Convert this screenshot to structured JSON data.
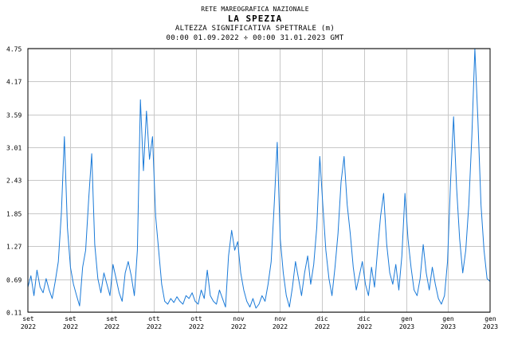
{
  "header": {
    "network": "RETE MAREOGRAFICA NAZIONALE",
    "station": "LA SPEZIA",
    "quantity": "ALTEZZA SIGNIFICATIVA SPETTRALE (m)",
    "period": "00:00 01.09.2022 ÷ 00:00 31.01.2023 GMT"
  },
  "chart_data": {
    "type": "line",
    "title": "LA SPEZIA",
    "subtitle": "ALTEZZA SIGNIFICATIVA SPETTRALE (m)",
    "xlabel": "",
    "ylabel": "",
    "grid": true,
    "line_color": "#1a7ad8",
    "x_range": [
      "2022-09-01",
      "2023-01-31"
    ],
    "ylim": [
      0.11,
      4.75
    ],
    "y_ticks": [
      "0.11",
      "0.69",
      "1.27",
      "1.85",
      "2.43",
      "3.01",
      "3.59",
      "4.17",
      "4.75"
    ],
    "x_ticks": [
      {
        "month": "set",
        "year": "2022"
      },
      {
        "month": "set",
        "year": "2022"
      },
      {
        "month": "set",
        "year": "2022"
      },
      {
        "month": "ott",
        "year": "2022"
      },
      {
        "month": "ott",
        "year": "2022"
      },
      {
        "month": "nov",
        "year": "2022"
      },
      {
        "month": "nov",
        "year": "2022"
      },
      {
        "month": "dic",
        "year": "2022"
      },
      {
        "month": "dic",
        "year": "2022"
      },
      {
        "month": "gen",
        "year": "2023"
      },
      {
        "month": "gen",
        "year": "2023"
      },
      {
        "month": "gen",
        "year": "2023"
      }
    ],
    "series": [
      {
        "values": [
          [
            "2022-09-01",
            0.55
          ],
          [
            "2022-09-02",
            0.75
          ],
          [
            "2022-09-03",
            0.4
          ],
          [
            "2022-09-04",
            0.85
          ],
          [
            "2022-09-05",
            0.55
          ],
          [
            "2022-09-06",
            0.45
          ],
          [
            "2022-09-07",
            0.7
          ],
          [
            "2022-09-08",
            0.5
          ],
          [
            "2022-09-09",
            0.35
          ],
          [
            "2022-09-10",
            0.65
          ],
          [
            "2022-09-11",
            1.0
          ],
          [
            "2022-09-12",
            1.85
          ],
          [
            "2022-09-13",
            3.2
          ],
          [
            "2022-09-14",
            1.6
          ],
          [
            "2022-09-15",
            0.9
          ],
          [
            "2022-09-16",
            0.6
          ],
          [
            "2022-09-17",
            0.4
          ],
          [
            "2022-09-18",
            0.22
          ],
          [
            "2022-09-19",
            0.9
          ],
          [
            "2022-09-20",
            1.2
          ],
          [
            "2022-09-21",
            2.1
          ],
          [
            "2022-09-22",
            2.9
          ],
          [
            "2022-09-23",
            1.3
          ],
          [
            "2022-09-24",
            0.7
          ],
          [
            "2022-09-25",
            0.45
          ],
          [
            "2022-09-26",
            0.8
          ],
          [
            "2022-09-27",
            0.6
          ],
          [
            "2022-09-28",
            0.4
          ],
          [
            "2022-09-29",
            0.95
          ],
          [
            "2022-09-30",
            0.7
          ],
          [
            "2022-10-01",
            0.45
          ],
          [
            "2022-10-02",
            0.3
          ],
          [
            "2022-10-03",
            0.8
          ],
          [
            "2022-10-04",
            1.0
          ],
          [
            "2022-10-05",
            0.75
          ],
          [
            "2022-10-06",
            0.4
          ],
          [
            "2022-10-07",
            1.2
          ],
          [
            "2022-10-08",
            3.85
          ],
          [
            "2022-10-09",
            2.6
          ],
          [
            "2022-10-10",
            3.65
          ],
          [
            "2022-10-11",
            2.8
          ],
          [
            "2022-10-12",
            3.2
          ],
          [
            "2022-10-13",
            1.8
          ],
          [
            "2022-10-14",
            1.2
          ],
          [
            "2022-10-15",
            0.6
          ],
          [
            "2022-10-16",
            0.3
          ],
          [
            "2022-10-17",
            0.25
          ],
          [
            "2022-10-18",
            0.35
          ],
          [
            "2022-10-19",
            0.28
          ],
          [
            "2022-10-20",
            0.38
          ],
          [
            "2022-10-21",
            0.3
          ],
          [
            "2022-10-22",
            0.25
          ],
          [
            "2022-10-23",
            0.4
          ],
          [
            "2022-10-24",
            0.35
          ],
          [
            "2022-10-25",
            0.45
          ],
          [
            "2022-10-26",
            0.3
          ],
          [
            "2022-10-27",
            0.25
          ],
          [
            "2022-10-28",
            0.5
          ],
          [
            "2022-10-29",
            0.35
          ],
          [
            "2022-10-30",
            0.85
          ],
          [
            "2022-10-31",
            0.4
          ],
          [
            "2022-11-01",
            0.3
          ],
          [
            "2022-11-02",
            0.25
          ],
          [
            "2022-11-03",
            0.5
          ],
          [
            "2022-11-04",
            0.35
          ],
          [
            "2022-11-05",
            0.2
          ],
          [
            "2022-11-06",
            1.1
          ],
          [
            "2022-11-07",
            1.55
          ],
          [
            "2022-11-08",
            1.2
          ],
          [
            "2022-11-09",
            1.35
          ],
          [
            "2022-11-10",
            0.8
          ],
          [
            "2022-11-11",
            0.5
          ],
          [
            "2022-11-12",
            0.3
          ],
          [
            "2022-11-13",
            0.2
          ],
          [
            "2022-11-14",
            0.35
          ],
          [
            "2022-11-15",
            0.18
          ],
          [
            "2022-11-16",
            0.25
          ],
          [
            "2022-11-17",
            0.4
          ],
          [
            "2022-11-18",
            0.3
          ],
          [
            "2022-11-19",
            0.6
          ],
          [
            "2022-11-20",
            1.0
          ],
          [
            "2022-11-21",
            2.0
          ],
          [
            "2022-11-22",
            3.1
          ],
          [
            "2022-11-23",
            1.4
          ],
          [
            "2022-11-24",
            0.8
          ],
          [
            "2022-11-25",
            0.4
          ],
          [
            "2022-11-26",
            0.2
          ],
          [
            "2022-11-27",
            0.55
          ],
          [
            "2022-11-28",
            1.0
          ],
          [
            "2022-11-29",
            0.7
          ],
          [
            "2022-11-30",
            0.4
          ],
          [
            "2022-12-01",
            0.8
          ],
          [
            "2022-12-02",
            1.1
          ],
          [
            "2022-12-03",
            0.6
          ],
          [
            "2022-12-04",
            0.95
          ],
          [
            "2022-12-05",
            1.6
          ],
          [
            "2022-12-06",
            2.85
          ],
          [
            "2022-12-07",
            2.0
          ],
          [
            "2022-12-08",
            1.2
          ],
          [
            "2022-12-09",
            0.7
          ],
          [
            "2022-12-10",
            0.4
          ],
          [
            "2022-12-11",
            0.9
          ],
          [
            "2022-12-12",
            1.5
          ],
          [
            "2022-12-13",
            2.4
          ],
          [
            "2022-12-14",
            2.85
          ],
          [
            "2022-12-15",
            2.0
          ],
          [
            "2022-12-16",
            1.5
          ],
          [
            "2022-12-17",
            0.9
          ],
          [
            "2022-12-18",
            0.5
          ],
          [
            "2022-12-19",
            0.75
          ],
          [
            "2022-12-20",
            1.0
          ],
          [
            "2022-12-21",
            0.6
          ],
          [
            "2022-12-22",
            0.4
          ],
          [
            "2022-12-23",
            0.9
          ],
          [
            "2022-12-24",
            0.55
          ],
          [
            "2022-12-25",
            1.2
          ],
          [
            "2022-12-26",
            1.8
          ],
          [
            "2022-12-27",
            2.2
          ],
          [
            "2022-12-28",
            1.3
          ],
          [
            "2022-12-29",
            0.8
          ],
          [
            "2022-12-30",
            0.6
          ],
          [
            "2022-12-31",
            0.95
          ],
          [
            "2023-01-01",
            0.5
          ],
          [
            "2023-01-02",
            1.1
          ],
          [
            "2023-01-03",
            2.2
          ],
          [
            "2023-01-04",
            1.4
          ],
          [
            "2023-01-05",
            0.9
          ],
          [
            "2023-01-06",
            0.5
          ],
          [
            "2023-01-07",
            0.4
          ],
          [
            "2023-01-08",
            0.7
          ],
          [
            "2023-01-09",
            1.3
          ],
          [
            "2023-01-10",
            0.8
          ],
          [
            "2023-01-11",
            0.5
          ],
          [
            "2023-01-12",
            0.9
          ],
          [
            "2023-01-13",
            0.6
          ],
          [
            "2023-01-14",
            0.35
          ],
          [
            "2023-01-15",
            0.25
          ],
          [
            "2023-01-16",
            0.4
          ],
          [
            "2023-01-17",
            1.0
          ],
          [
            "2023-01-18",
            2.4
          ],
          [
            "2023-01-19",
            3.55
          ],
          [
            "2023-01-20",
            2.3
          ],
          [
            "2023-01-21",
            1.4
          ],
          [
            "2023-01-22",
            0.8
          ],
          [
            "2023-01-23",
            1.2
          ],
          [
            "2023-01-24",
            2.0
          ],
          [
            "2023-01-25",
            3.2
          ],
          [
            "2023-01-26",
            4.75
          ],
          [
            "2023-01-27",
            3.5
          ],
          [
            "2023-01-28",
            2.0
          ],
          [
            "2023-01-29",
            1.2
          ],
          [
            "2023-01-30",
            0.7
          ],
          [
            "2023-01-31",
            0.65
          ]
        ]
      }
    ]
  }
}
